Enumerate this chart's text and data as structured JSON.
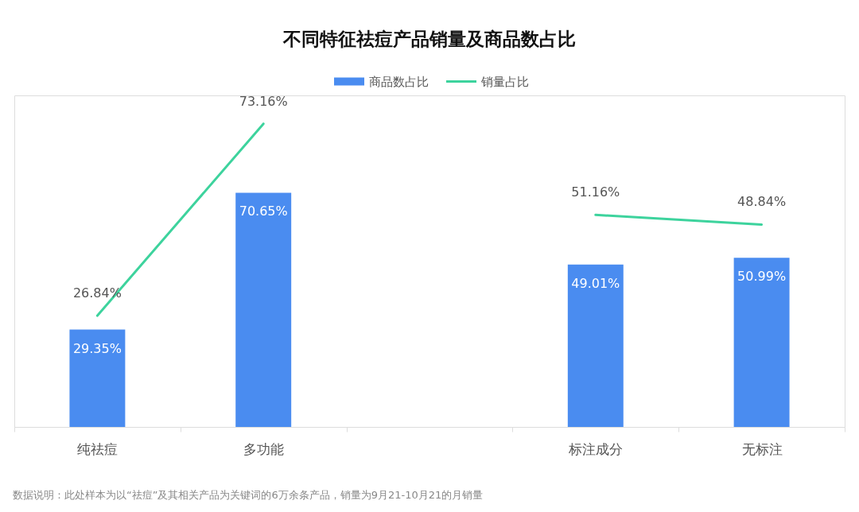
{
  "chart_data": {
    "type": "bar",
    "title": "不同特征祛痘产品销量及商品数占比",
    "categories": [
      "纯祛痘",
      "多功能",
      null,
      "标注成分",
      "无标注"
    ],
    "series": [
      {
        "name": "商品数占比",
        "color": "#4a8cf0",
        "values": [
          29.35,
          70.65,
          null,
          49.01,
          50.99
        ],
        "value_labels": [
          "29.35%",
          "70.65%",
          null,
          "49.01%",
          "50.99%"
        ]
      },
      {
        "name": "销量占比",
        "type": "line",
        "axis": "y2",
        "color": "#3dd39d",
        "values": [
          26.84,
          73.16,
          null,
          51.16,
          48.84
        ],
        "value_labels": [
          "26.84%",
          "73.16%",
          null,
          "51.16%",
          "48.84%"
        ]
      }
    ],
    "ylim": [
      0,
      100
    ],
    "y2lim": [
      0,
      80
    ],
    "tick_labels": "x",
    "legend": "top",
    "marker": "none",
    "line_style": "solid",
    "annotations": [
      "数据说明：此处样本为以“祛痘”及其相关产品为关键词的6万余条产品，销量为9月21-10月21的月销量"
    ]
  }
}
